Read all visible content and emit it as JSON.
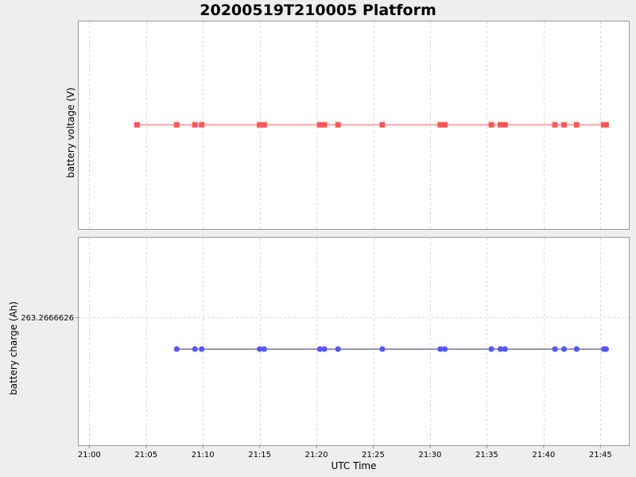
{
  "chart_data": {
    "type": "scatter",
    "title": "20200519T210005 Platform",
    "xlabel": "UTC Time",
    "x_ticks": [
      "21:00",
      "21:05",
      "21:10",
      "21:15",
      "21:20",
      "21:25",
      "21:30",
      "21:35",
      "21:40",
      "21:45"
    ],
    "xlim": [
      "21:-01.0",
      "21:47.5"
    ],
    "grid": true,
    "panels": [
      {
        "ylabel": "battery voltage (V)",
        "y_ticks": [],
        "color": "#ff5555",
        "line_color": "#ff5555",
        "marker": "square",
        "series": [
          {
            "x": [
              "21:04:12",
              "21:07:42",
              "21:09:18",
              "21:09:54",
              "21:15:00",
              "21:15:24",
              "21:20:18",
              "21:20:42",
              "21:21:54",
              "21:25:48",
              "21:30:54",
              "21:31:18",
              "21:35:24",
              "21:36:12",
              "21:36:36",
              "21:41:00",
              "21:41:48",
              "21:42:54",
              "21:45:18",
              "21:45:30"
            ],
            "y": [
              0,
              0,
              0,
              0,
              0,
              0,
              0,
              0,
              0,
              0,
              0,
              0,
              0,
              0,
              0,
              0,
              0,
              0,
              0,
              0
            ]
          }
        ]
      },
      {
        "ylabel": "battery charge (Ah)",
        "y_ticks": [
          "263.2666626"
        ],
        "y_tick_values": [
          263.2666626
        ],
        "ylim": [
          263.2666618,
          263.2666631
        ],
        "color": "#5555ff",
        "line_color": "#333366",
        "marker": "circle",
        "series": [
          {
            "x": [
              "21:07:42",
              "21:09:18",
              "21:09:54",
              "21:15:00",
              "21:15:24",
              "21:20:18",
              "21:20:42",
              "21:21:54",
              "21:25:48",
              "21:30:54",
              "21:31:18",
              "21:35:24",
              "21:36:12",
              "21:36:36",
              "21:41:00",
              "21:41:48",
              "21:42:54",
              "21:45:18",
              "21:45:30"
            ],
            "y": [
              263.2666624,
              263.2666624,
              263.2666624,
              263.2666624,
              263.2666624,
              263.2666624,
              263.2666624,
              263.2666624,
              263.2666624,
              263.2666624,
              263.2666624,
              263.2666624,
              263.2666624,
              263.2666624,
              263.2666624,
              263.2666624,
              263.2666624,
              263.2666624,
              263.2666624
            ]
          }
        ]
      }
    ]
  }
}
